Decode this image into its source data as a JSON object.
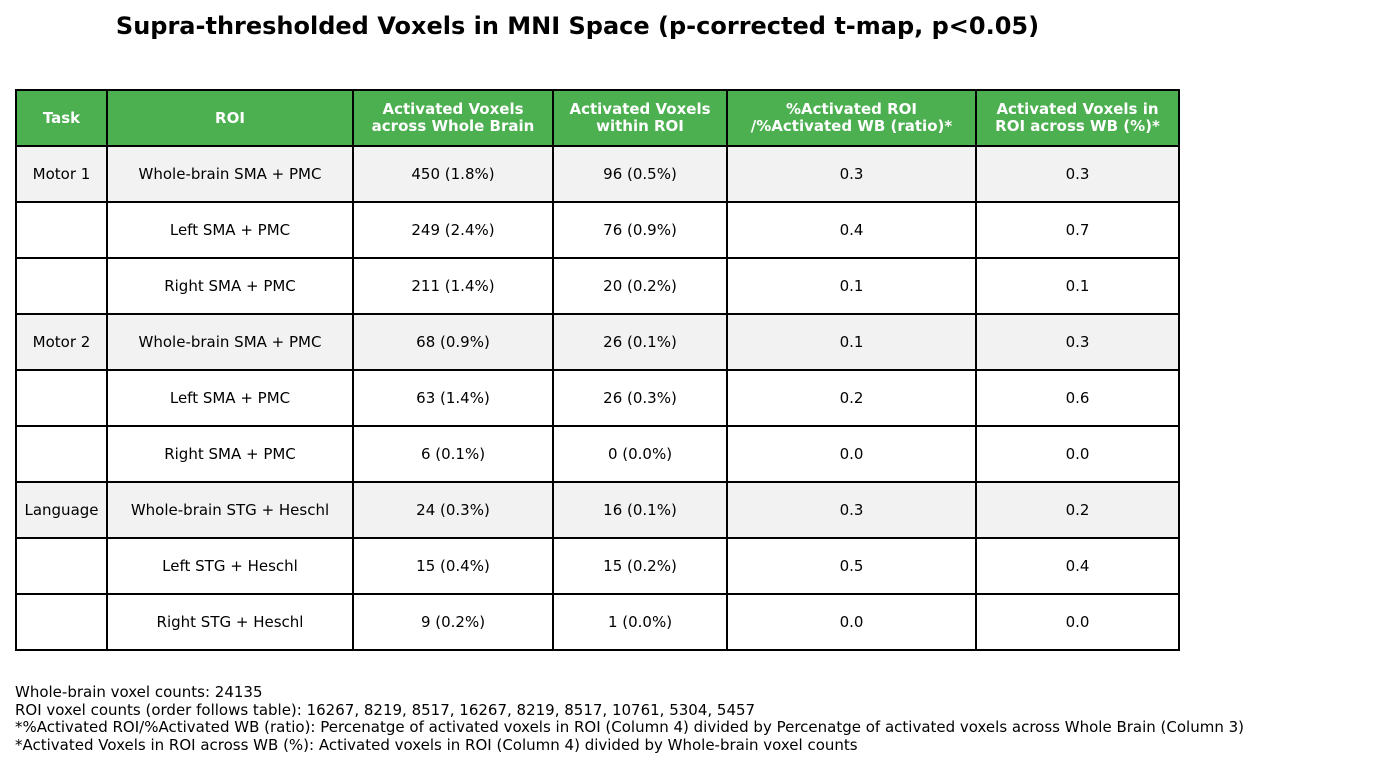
{
  "chart_data": {
    "type": "table",
    "title": "Supra-thresholded Voxels in MNI Space (p-corrected t-map, p<0.05)",
    "header_color": "#4caf50",
    "header_text_color": "#ffffff",
    "shaded_row_color": "#f2f2f2",
    "columns": [
      "Task",
      "ROI",
      "Activated Voxels\nacross Whole Brain",
      "Activated Voxels\nwithin ROI",
      "%Activated ROI\n/%Activated WB (ratio)*",
      "Activated Voxels in\nROI across WB (%)*"
    ],
    "rows": [
      {
        "shaded": true,
        "cells": [
          "Motor 1",
          "Whole-brain SMA + PMC",
          "450 (1.8%)",
          "96 (0.5%)",
          "0.3",
          "0.3"
        ]
      },
      {
        "shaded": false,
        "cells": [
          "",
          "Left SMA + PMC",
          "249 (2.4%)",
          "76 (0.9%)",
          "0.4",
          "0.7"
        ]
      },
      {
        "shaded": false,
        "cells": [
          "",
          "Right SMA + PMC",
          "211 (1.4%)",
          "20 (0.2%)",
          "0.1",
          "0.1"
        ]
      },
      {
        "shaded": true,
        "cells": [
          "Motor 2",
          "Whole-brain SMA + PMC",
          "68 (0.9%)",
          "26 (0.1%)",
          "0.1",
          "0.3"
        ]
      },
      {
        "shaded": false,
        "cells": [
          "",
          "Left SMA + PMC",
          "63 (1.4%)",
          "26 (0.3%)",
          "0.2",
          "0.6"
        ]
      },
      {
        "shaded": false,
        "cells": [
          "",
          "Right SMA + PMC",
          "6 (0.1%)",
          "0 (0.0%)",
          "0.0",
          "0.0"
        ]
      },
      {
        "shaded": true,
        "cells": [
          "Language",
          "Whole-brain STG + Heschl",
          "24 (0.3%)",
          "16 (0.1%)",
          "0.3",
          "0.2"
        ]
      },
      {
        "shaded": false,
        "cells": [
          "",
          "Left STG + Heschl",
          "15 (0.4%)",
          "15 (0.2%)",
          "0.5",
          "0.4"
        ]
      },
      {
        "shaded": false,
        "cells": [
          "",
          "Right STG + Heschl",
          "9 (0.2%)",
          "1 (0.0%)",
          "0.0",
          "0.0"
        ]
      }
    ]
  },
  "notes": [
    "Whole-brain voxel counts: 24135",
    "ROI voxel counts (order follows table): 16267, 8219, 8517, 16267, 8219, 8517, 10761, 5304, 5457",
    "*%Activated ROI/%Activated WB (ratio): Percenatge of activated voxels in ROI (Column 4) divided by Percenatge of activated voxels across Whole Brain (Column 3)",
    "*Activated Voxels in ROI across WB (%): Activated voxels in ROI (Column 4) divided by Whole-brain voxel counts"
  ]
}
